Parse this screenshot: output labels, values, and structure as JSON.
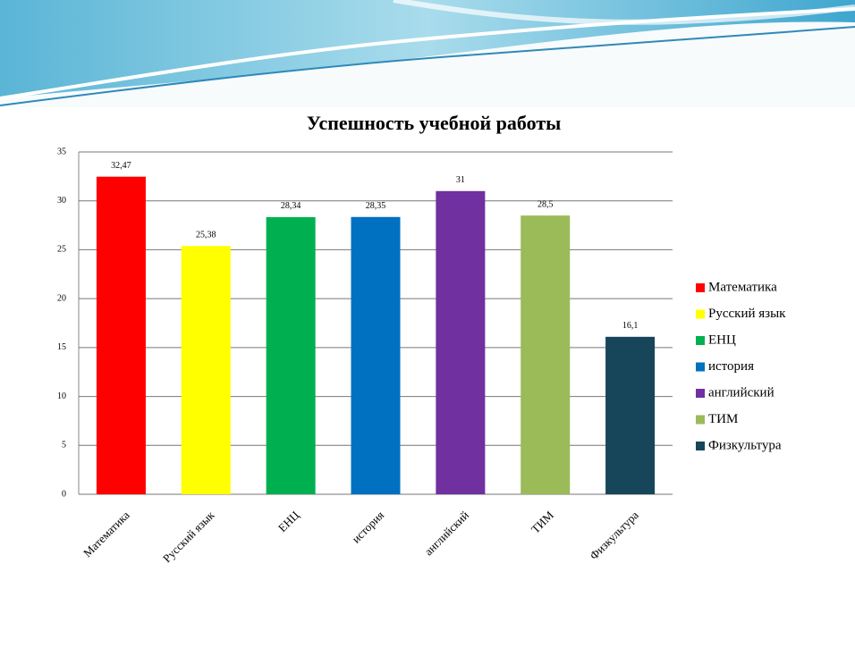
{
  "chart_data": {
    "type": "bar",
    "title": "Успешность  учебной работы",
    "categories": [
      "Математика",
      "Русский язык",
      "ЕНЦ",
      "история",
      "английский",
      "ТИМ",
      "Физкультура"
    ],
    "values": [
      32.47,
      25.38,
      28.34,
      28.35,
      31,
      28.5,
      16.1
    ],
    "value_labels": [
      "32,47",
      "25,38",
      "28,34",
      "28,35",
      "31",
      "28,5",
      "16,1"
    ],
    "colors": [
      "#ff0000",
      "#ffff00",
      "#00b050",
      "#0070c0",
      "#7030a0",
      "#9bbb59",
      "#17465a"
    ],
    "ylim": [
      0,
      35
    ],
    "yticks": [
      0,
      5,
      10,
      15,
      20,
      25,
      30,
      35
    ],
    "grid": true,
    "legend": "right"
  }
}
